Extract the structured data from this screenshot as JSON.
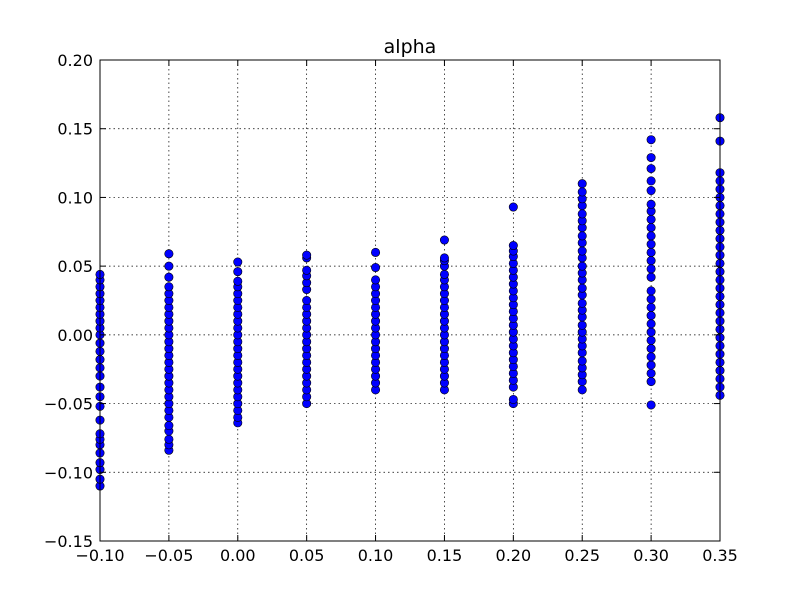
{
  "chart_data": {
    "type": "scatter",
    "title": "alpha",
    "xlabel": "",
    "ylabel": "",
    "xlim": [
      -0.1,
      0.35
    ],
    "ylim": [
      -0.15,
      0.2
    ],
    "grid": true,
    "x_ticks": [
      "−0.10",
      "−0.05",
      "0.00",
      "0.05",
      "0.10",
      "0.15",
      "0.20",
      "0.25",
      "0.30",
      "0.35"
    ],
    "x_tick_values": [
      -0.1,
      -0.05,
      0.0,
      0.05,
      0.1,
      0.15,
      0.2,
      0.25,
      0.3,
      0.35
    ],
    "y_ticks": [
      "0.20",
      "0.15",
      "0.10",
      "0.05",
      "0.00",
      "−0.05",
      "−0.10",
      "−0.15"
    ],
    "y_tick_values": [
      0.2,
      0.15,
      0.1,
      0.05,
      0.0,
      -0.05,
      -0.1,
      -0.15
    ],
    "marker_color": "#0000ff",
    "series": [
      {
        "points": [
          [
            -0.1,
            -0.11
          ],
          [
            -0.1,
            -0.105
          ],
          [
            -0.1,
            -0.098
          ],
          [
            -0.1,
            -0.093
          ],
          [
            -0.1,
            -0.086
          ],
          [
            -0.1,
            -0.08
          ],
          [
            -0.1,
            -0.076
          ],
          [
            -0.1,
            -0.072
          ],
          [
            -0.1,
            -0.062
          ],
          [
            -0.1,
            -0.052
          ],
          [
            -0.1,
            -0.045
          ],
          [
            -0.1,
            -0.038
          ],
          [
            -0.1,
            -0.03
          ],
          [
            -0.1,
            -0.024
          ],
          [
            -0.1,
            -0.018
          ],
          [
            -0.1,
            -0.012
          ],
          [
            -0.1,
            -0.006
          ],
          [
            -0.1,
            0.0
          ],
          [
            -0.1,
            0.005
          ],
          [
            -0.1,
            0.01
          ],
          [
            -0.1,
            0.015
          ],
          [
            -0.1,
            0.02
          ],
          [
            -0.1,
            0.025
          ],
          [
            -0.1,
            0.03
          ],
          [
            -0.1,
            0.035
          ],
          [
            -0.1,
            0.04
          ],
          [
            -0.1,
            0.044
          ],
          [
            -0.05,
            -0.084
          ],
          [
            -0.05,
            -0.08
          ],
          [
            -0.05,
            -0.076
          ],
          [
            -0.05,
            -0.07
          ],
          [
            -0.05,
            -0.066
          ],
          [
            -0.05,
            -0.06
          ],
          [
            -0.05,
            -0.055
          ],
          [
            -0.05,
            -0.05
          ],
          [
            -0.05,
            -0.045
          ],
          [
            -0.05,
            -0.04
          ],
          [
            -0.05,
            -0.035
          ],
          [
            -0.05,
            -0.03
          ],
          [
            -0.05,
            -0.025
          ],
          [
            -0.05,
            -0.02
          ],
          [
            -0.05,
            -0.015
          ],
          [
            -0.05,
            -0.01
          ],
          [
            -0.05,
            -0.005
          ],
          [
            -0.05,
            0.0
          ],
          [
            -0.05,
            0.005
          ],
          [
            -0.05,
            0.01
          ],
          [
            -0.05,
            0.015
          ],
          [
            -0.05,
            0.02
          ],
          [
            -0.05,
            0.025
          ],
          [
            -0.05,
            0.03
          ],
          [
            -0.05,
            0.035
          ],
          [
            -0.05,
            0.042
          ],
          [
            -0.05,
            0.05
          ],
          [
            -0.05,
            0.059
          ],
          [
            0.0,
            -0.064
          ],
          [
            0.0,
            -0.06
          ],
          [
            0.0,
            -0.055
          ],
          [
            0.0,
            -0.05
          ],
          [
            0.0,
            -0.045
          ],
          [
            0.0,
            -0.04
          ],
          [
            0.0,
            -0.035
          ],
          [
            0.0,
            -0.03
          ],
          [
            0.0,
            -0.025
          ],
          [
            0.0,
            -0.02
          ],
          [
            0.0,
            -0.015
          ],
          [
            0.0,
            -0.01
          ],
          [
            0.0,
            -0.005
          ],
          [
            0.0,
            0.0
          ],
          [
            0.0,
            0.005
          ],
          [
            0.0,
            0.01
          ],
          [
            0.0,
            0.015
          ],
          [
            0.0,
            0.02
          ],
          [
            0.0,
            0.025
          ],
          [
            0.0,
            0.03
          ],
          [
            0.0,
            0.035
          ],
          [
            0.0,
            0.039
          ],
          [
            0.0,
            0.046
          ],
          [
            0.0,
            0.053
          ],
          [
            0.05,
            -0.05
          ],
          [
            0.05,
            -0.045
          ],
          [
            0.05,
            -0.04
          ],
          [
            0.05,
            -0.035
          ],
          [
            0.05,
            -0.03
          ],
          [
            0.05,
            -0.025
          ],
          [
            0.05,
            -0.02
          ],
          [
            0.05,
            -0.015
          ],
          [
            0.05,
            -0.01
          ],
          [
            0.05,
            -0.005
          ],
          [
            0.05,
            0.0
          ],
          [
            0.05,
            0.005
          ],
          [
            0.05,
            0.01
          ],
          [
            0.05,
            0.015
          ],
          [
            0.05,
            0.02
          ],
          [
            0.05,
            0.025
          ],
          [
            0.05,
            0.033
          ],
          [
            0.05,
            0.038
          ],
          [
            0.05,
            0.043
          ],
          [
            0.05,
            0.047
          ],
          [
            0.05,
            0.056
          ],
          [
            0.05,
            0.058
          ],
          [
            0.1,
            -0.04
          ],
          [
            0.1,
            -0.035
          ],
          [
            0.1,
            -0.03
          ],
          [
            0.1,
            -0.025
          ],
          [
            0.1,
            -0.02
          ],
          [
            0.1,
            -0.015
          ],
          [
            0.1,
            -0.01
          ],
          [
            0.1,
            -0.005
          ],
          [
            0.1,
            0.0
          ],
          [
            0.1,
            0.005
          ],
          [
            0.1,
            0.01
          ],
          [
            0.1,
            0.015
          ],
          [
            0.1,
            0.02
          ],
          [
            0.1,
            0.025
          ],
          [
            0.1,
            0.03
          ],
          [
            0.1,
            0.035
          ],
          [
            0.1,
            0.04
          ],
          [
            0.1,
            0.049
          ],
          [
            0.1,
            0.06
          ],
          [
            0.15,
            -0.04
          ],
          [
            0.15,
            -0.035
          ],
          [
            0.15,
            -0.03
          ],
          [
            0.15,
            -0.025
          ],
          [
            0.15,
            -0.02
          ],
          [
            0.15,
            -0.015
          ],
          [
            0.15,
            -0.01
          ],
          [
            0.15,
            -0.005
          ],
          [
            0.15,
            0.0
          ],
          [
            0.15,
            0.005
          ],
          [
            0.15,
            0.01
          ],
          [
            0.15,
            0.015
          ],
          [
            0.15,
            0.02
          ],
          [
            0.15,
            0.025
          ],
          [
            0.15,
            0.03
          ],
          [
            0.15,
            0.035
          ],
          [
            0.15,
            0.04
          ],
          [
            0.15,
            0.044
          ],
          [
            0.15,
            0.05
          ],
          [
            0.15,
            0.054
          ],
          [
            0.15,
            0.056
          ],
          [
            0.15,
            0.069
          ],
          [
            0.2,
            -0.05
          ],
          [
            0.2,
            -0.047
          ],
          [
            0.2,
            -0.038
          ],
          [
            0.2,
            -0.033
          ],
          [
            0.2,
            -0.028
          ],
          [
            0.2,
            -0.023
          ],
          [
            0.2,
            -0.018
          ],
          [
            0.2,
            -0.013
          ],
          [
            0.2,
            -0.008
          ],
          [
            0.2,
            -0.003
          ],
          [
            0.2,
            0.002
          ],
          [
            0.2,
            0.007
          ],
          [
            0.2,
            0.012
          ],
          [
            0.2,
            0.017
          ],
          [
            0.2,
            0.022
          ],
          [
            0.2,
            0.027
          ],
          [
            0.2,
            0.032
          ],
          [
            0.2,
            0.037
          ],
          [
            0.2,
            0.042
          ],
          [
            0.2,
            0.047
          ],
          [
            0.2,
            0.052
          ],
          [
            0.2,
            0.057
          ],
          [
            0.2,
            0.061
          ],
          [
            0.2,
            0.065
          ],
          [
            0.2,
            0.093
          ],
          [
            0.25,
            -0.04
          ],
          [
            0.25,
            -0.034
          ],
          [
            0.25,
            -0.029
          ],
          [
            0.25,
            -0.024
          ],
          [
            0.25,
            -0.019
          ],
          [
            0.25,
            -0.013
          ],
          [
            0.25,
            -0.008
          ],
          [
            0.25,
            -0.003
          ],
          [
            0.25,
            0.002
          ],
          [
            0.25,
            0.007
          ],
          [
            0.25,
            0.013
          ],
          [
            0.25,
            0.018
          ],
          [
            0.25,
            0.023
          ],
          [
            0.25,
            0.029
          ],
          [
            0.25,
            0.034
          ],
          [
            0.25,
            0.04
          ],
          [
            0.25,
            0.045
          ],
          [
            0.25,
            0.05
          ],
          [
            0.25,
            0.056
          ],
          [
            0.25,
            0.061
          ],
          [
            0.25,
            0.067
          ],
          [
            0.25,
            0.072
          ],
          [
            0.25,
            0.078
          ],
          [
            0.25,
            0.083
          ],
          [
            0.25,
            0.088
          ],
          [
            0.25,
            0.094
          ],
          [
            0.25,
            0.099
          ],
          [
            0.25,
            0.104
          ],
          [
            0.25,
            0.11
          ],
          [
            0.3,
            -0.051
          ],
          [
            0.3,
            -0.034
          ],
          [
            0.3,
            -0.028
          ],
          [
            0.3,
            -0.022
          ],
          [
            0.3,
            -0.016
          ],
          [
            0.3,
            -0.01
          ],
          [
            0.3,
            -0.004
          ],
          [
            0.3,
            0.002
          ],
          [
            0.3,
            0.008
          ],
          [
            0.3,
            0.014
          ],
          [
            0.3,
            0.02
          ],
          [
            0.3,
            0.026
          ],
          [
            0.3,
            0.032
          ],
          [
            0.3,
            0.042
          ],
          [
            0.3,
            0.048
          ],
          [
            0.3,
            0.054
          ],
          [
            0.3,
            0.06
          ],
          [
            0.3,
            0.066
          ],
          [
            0.3,
            0.072
          ],
          [
            0.3,
            0.078
          ],
          [
            0.3,
            0.084
          ],
          [
            0.3,
            0.09
          ],
          [
            0.3,
            0.095
          ],
          [
            0.3,
            0.105
          ],
          [
            0.3,
            0.112
          ],
          [
            0.3,
            0.121
          ],
          [
            0.3,
            0.129
          ],
          [
            0.3,
            0.142
          ],
          [
            0.35,
            -0.044
          ],
          [
            0.35,
            -0.038
          ],
          [
            0.35,
            -0.032
          ],
          [
            0.35,
            -0.026
          ],
          [
            0.35,
            -0.02
          ],
          [
            0.35,
            -0.014
          ],
          [
            0.35,
            -0.008
          ],
          [
            0.35,
            -0.002
          ],
          [
            0.35,
            0.004
          ],
          [
            0.35,
            0.01
          ],
          [
            0.35,
            0.016
          ],
          [
            0.35,
            0.022
          ],
          [
            0.35,
            0.028
          ],
          [
            0.35,
            0.034
          ],
          [
            0.35,
            0.04
          ],
          [
            0.35,
            0.046
          ],
          [
            0.35,
            0.052
          ],
          [
            0.35,
            0.058
          ],
          [
            0.35,
            0.064
          ],
          [
            0.35,
            0.07
          ],
          [
            0.35,
            0.076
          ],
          [
            0.35,
            0.082
          ],
          [
            0.35,
            0.088
          ],
          [
            0.35,
            0.094
          ],
          [
            0.35,
            0.1
          ],
          [
            0.35,
            0.106
          ],
          [
            0.35,
            0.112
          ],
          [
            0.35,
            0.118
          ],
          [
            0.35,
            0.141
          ],
          [
            0.35,
            0.158
          ]
        ]
      }
    ]
  }
}
